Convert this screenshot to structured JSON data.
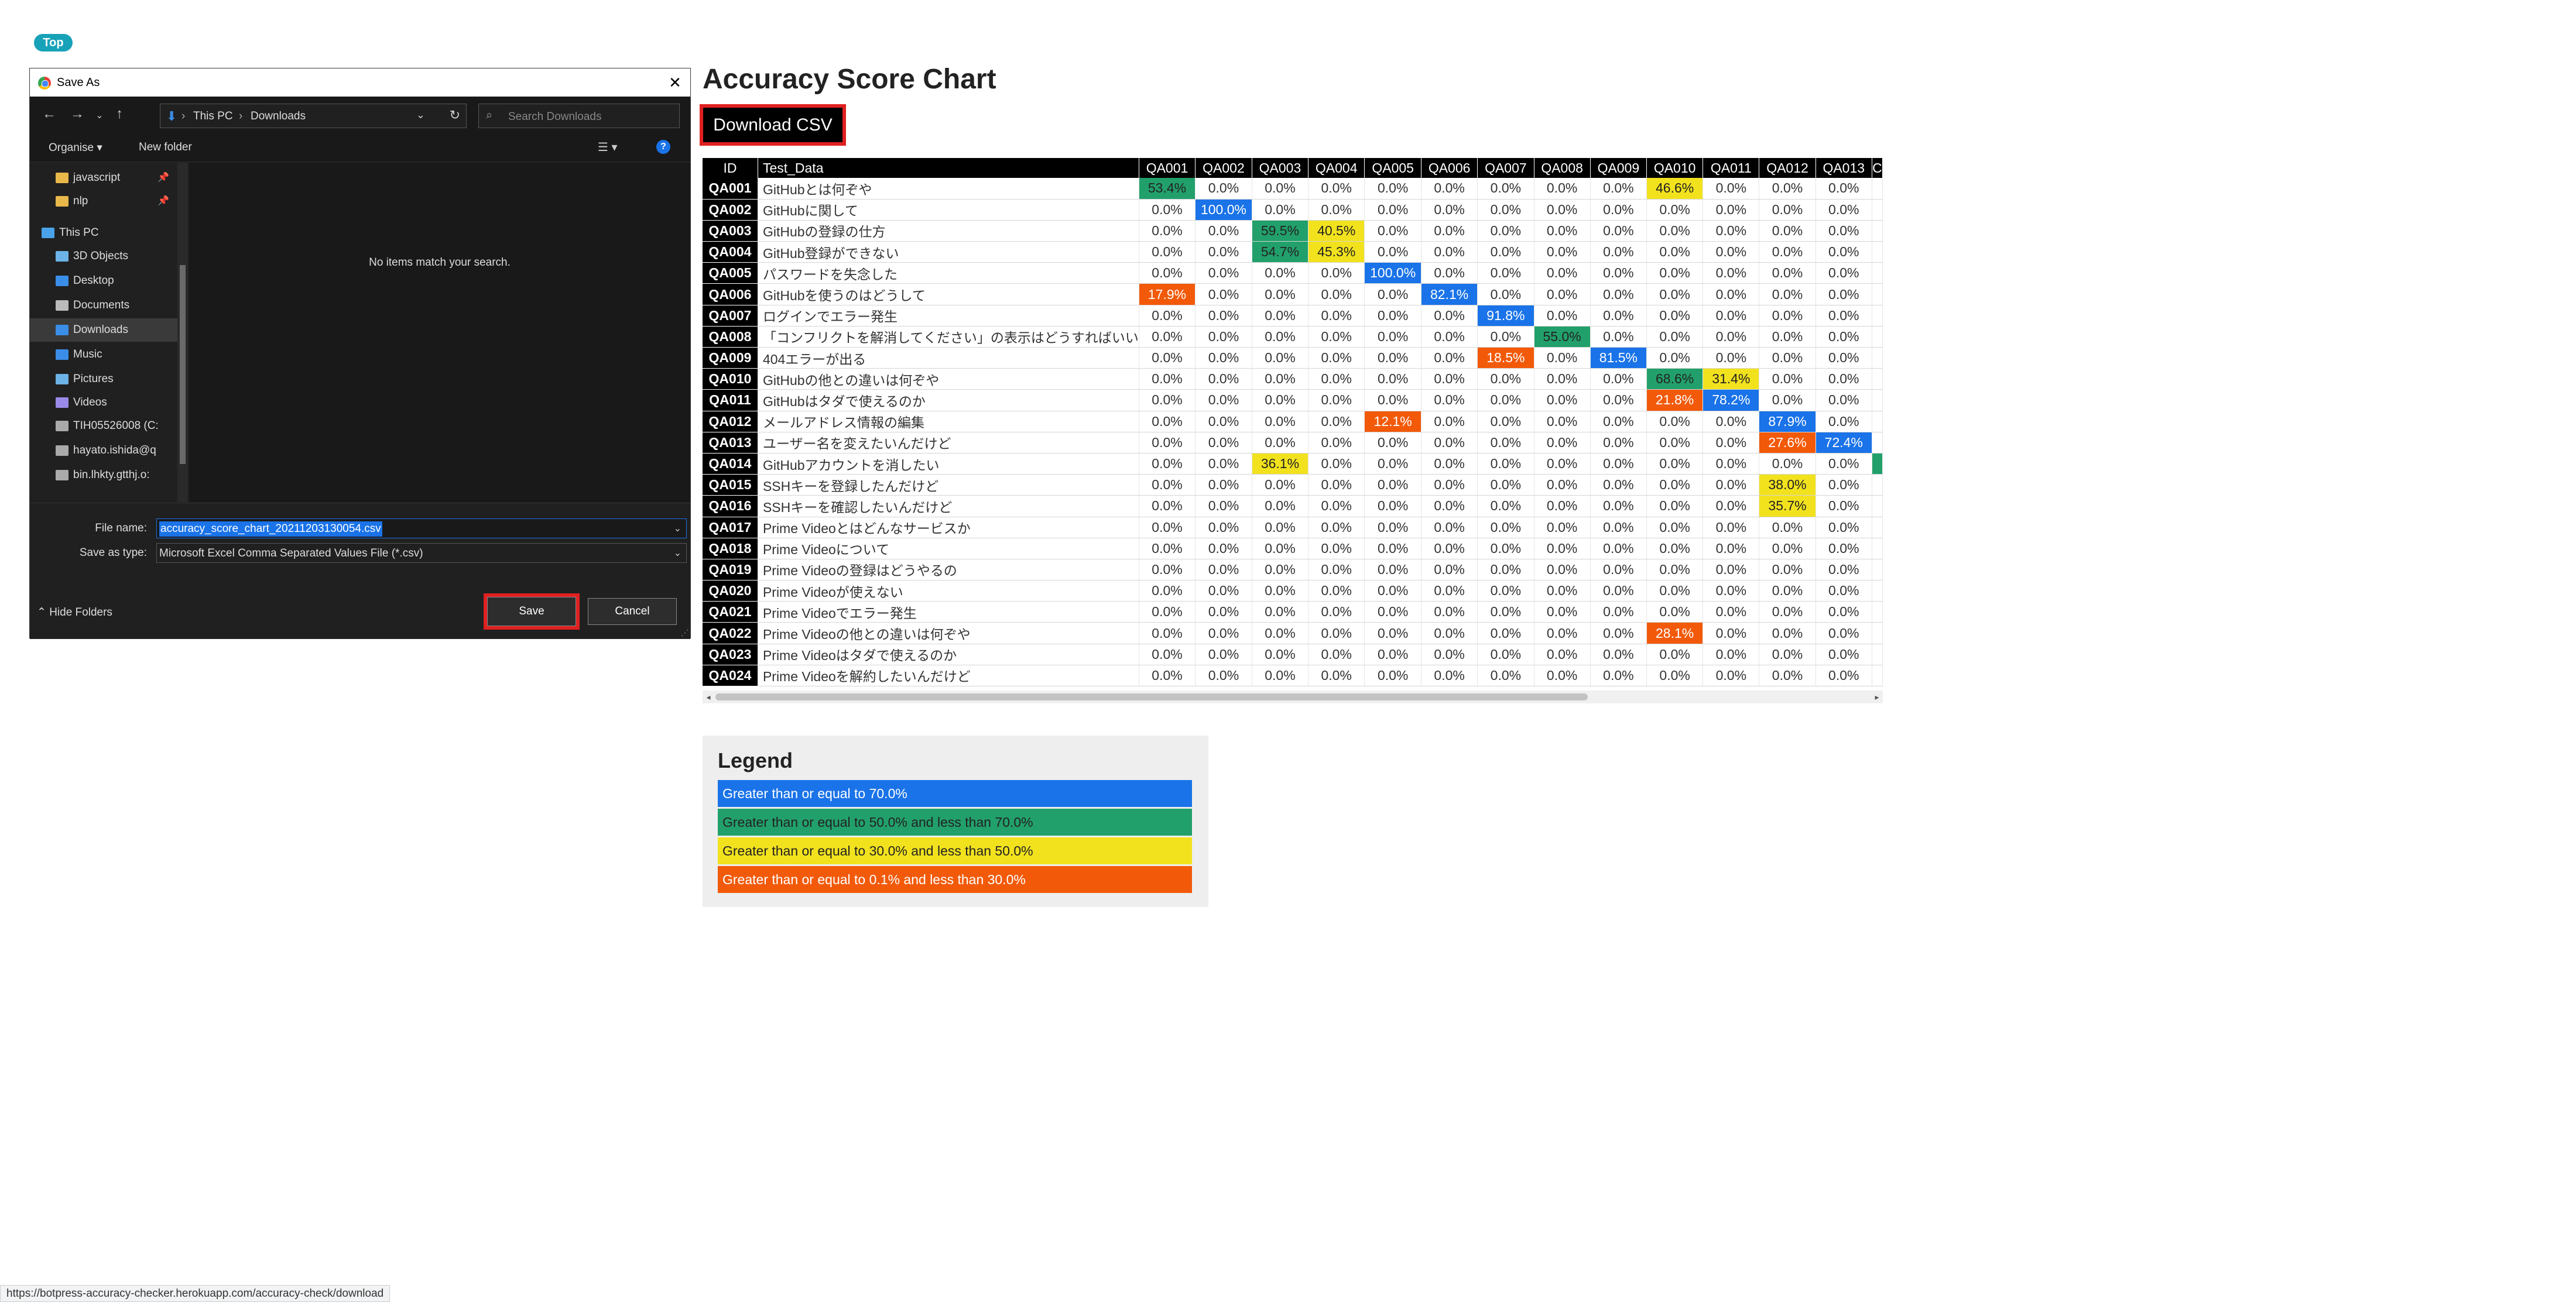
{
  "top_badge": "Top",
  "page": {
    "title": "Accuracy Score Chart",
    "download_label": "Download CSV"
  },
  "colors": {
    "blue": "#1a73e8",
    "green": "#22a06b",
    "yellow": "#f2e21e",
    "orange": "#f25a0a"
  },
  "table": {
    "id_header": "ID",
    "data_header": "Test_Data",
    "columns": [
      "QA001",
      "QA002",
      "QA003",
      "QA004",
      "QA005",
      "QA006",
      "QA007",
      "QA008",
      "QA009",
      "QA010",
      "QA011",
      "QA012",
      "QA013",
      "C"
    ],
    "rows": [
      {
        "id": "QA001",
        "text": "GitHubとは何ぞや",
        "vals": [
          "53.4%",
          "0.0%",
          "0.0%",
          "0.0%",
          "0.0%",
          "0.0%",
          "0.0%",
          "0.0%",
          "0.0%",
          "46.6%",
          "0.0%",
          "0.0%",
          "0.0%",
          ""
        ]
      },
      {
        "id": "QA002",
        "text": "GitHubに関して",
        "vals": [
          "0.0%",
          "100.0%",
          "0.0%",
          "0.0%",
          "0.0%",
          "0.0%",
          "0.0%",
          "0.0%",
          "0.0%",
          "0.0%",
          "0.0%",
          "0.0%",
          "0.0%",
          ""
        ]
      },
      {
        "id": "QA003",
        "text": "GitHubの登録の仕方",
        "vals": [
          "0.0%",
          "0.0%",
          "59.5%",
          "40.5%",
          "0.0%",
          "0.0%",
          "0.0%",
          "0.0%",
          "0.0%",
          "0.0%",
          "0.0%",
          "0.0%",
          "0.0%",
          ""
        ]
      },
      {
        "id": "QA004",
        "text": "GitHub登録ができない",
        "vals": [
          "0.0%",
          "0.0%",
          "54.7%",
          "45.3%",
          "0.0%",
          "0.0%",
          "0.0%",
          "0.0%",
          "0.0%",
          "0.0%",
          "0.0%",
          "0.0%",
          "0.0%",
          ""
        ]
      },
      {
        "id": "QA005",
        "text": "パスワードを失念した",
        "vals": [
          "0.0%",
          "0.0%",
          "0.0%",
          "0.0%",
          "100.0%",
          "0.0%",
          "0.0%",
          "0.0%",
          "0.0%",
          "0.0%",
          "0.0%",
          "0.0%",
          "0.0%",
          ""
        ]
      },
      {
        "id": "QA006",
        "text": "GitHubを使うのはどうして",
        "vals": [
          "17.9%",
          "0.0%",
          "0.0%",
          "0.0%",
          "0.0%",
          "82.1%",
          "0.0%",
          "0.0%",
          "0.0%",
          "0.0%",
          "0.0%",
          "0.0%",
          "0.0%",
          ""
        ]
      },
      {
        "id": "QA007",
        "text": "ログインでエラー発生",
        "vals": [
          "0.0%",
          "0.0%",
          "0.0%",
          "0.0%",
          "0.0%",
          "0.0%",
          "91.8%",
          "0.0%",
          "0.0%",
          "0.0%",
          "0.0%",
          "0.0%",
          "0.0%",
          ""
        ]
      },
      {
        "id": "QA008",
        "text": "「コンフリクトを解消してください」の表示はどうすればいい",
        "vals": [
          "0.0%",
          "0.0%",
          "0.0%",
          "0.0%",
          "0.0%",
          "0.0%",
          "0.0%",
          "55.0%",
          "0.0%",
          "0.0%",
          "0.0%",
          "0.0%",
          "0.0%",
          ""
        ]
      },
      {
        "id": "QA009",
        "text": "404エラーが出る",
        "vals": [
          "0.0%",
          "0.0%",
          "0.0%",
          "0.0%",
          "0.0%",
          "0.0%",
          "18.5%",
          "0.0%",
          "81.5%",
          "0.0%",
          "0.0%",
          "0.0%",
          "0.0%",
          ""
        ]
      },
      {
        "id": "QA010",
        "text": "GitHubの他との違いは何ぞや",
        "vals": [
          "0.0%",
          "0.0%",
          "0.0%",
          "0.0%",
          "0.0%",
          "0.0%",
          "0.0%",
          "0.0%",
          "0.0%",
          "68.6%",
          "31.4%",
          "0.0%",
          "0.0%",
          ""
        ]
      },
      {
        "id": "QA011",
        "text": "GitHubはタダで使えるのか",
        "vals": [
          "0.0%",
          "0.0%",
          "0.0%",
          "0.0%",
          "0.0%",
          "0.0%",
          "0.0%",
          "0.0%",
          "0.0%",
          "21.8%",
          "78.2%",
          "0.0%",
          "0.0%",
          ""
        ]
      },
      {
        "id": "QA012",
        "text": "メールアドレス情報の編集",
        "vals": [
          "0.0%",
          "0.0%",
          "0.0%",
          "0.0%",
          "12.1%",
          "0.0%",
          "0.0%",
          "0.0%",
          "0.0%",
          "0.0%",
          "0.0%",
          "87.9%",
          "0.0%",
          ""
        ]
      },
      {
        "id": "QA013",
        "text": "ユーザー名を変えたいんだけど",
        "vals": [
          "0.0%",
          "0.0%",
          "0.0%",
          "0.0%",
          "0.0%",
          "0.0%",
          "0.0%",
          "0.0%",
          "0.0%",
          "0.0%",
          "0.0%",
          "27.6%",
          "72.4%",
          ""
        ]
      },
      {
        "id": "QA014",
        "text": "GitHubアカウントを消したい",
        "vals": [
          "0.0%",
          "0.0%",
          "36.1%",
          "0.0%",
          "0.0%",
          "0.0%",
          "0.0%",
          "0.0%",
          "0.0%",
          "0.0%",
          "0.0%",
          "0.0%",
          "0.0%",
          ""
        ]
      },
      {
        "id": "QA015",
        "text": "SSHキーを登録したんだけど",
        "vals": [
          "0.0%",
          "0.0%",
          "0.0%",
          "0.0%",
          "0.0%",
          "0.0%",
          "0.0%",
          "0.0%",
          "0.0%",
          "0.0%",
          "0.0%",
          "38.0%",
          "0.0%",
          ""
        ]
      },
      {
        "id": "QA016",
        "text": "SSHキーを確認したいんだけど",
        "vals": [
          "0.0%",
          "0.0%",
          "0.0%",
          "0.0%",
          "0.0%",
          "0.0%",
          "0.0%",
          "0.0%",
          "0.0%",
          "0.0%",
          "0.0%",
          "35.7%",
          "0.0%",
          ""
        ]
      },
      {
        "id": "QA017",
        "text": "Prime Videoとはどんなサービスか",
        "vals": [
          "0.0%",
          "0.0%",
          "0.0%",
          "0.0%",
          "0.0%",
          "0.0%",
          "0.0%",
          "0.0%",
          "0.0%",
          "0.0%",
          "0.0%",
          "0.0%",
          "0.0%",
          ""
        ]
      },
      {
        "id": "QA018",
        "text": "Prime Videoについて",
        "vals": [
          "0.0%",
          "0.0%",
          "0.0%",
          "0.0%",
          "0.0%",
          "0.0%",
          "0.0%",
          "0.0%",
          "0.0%",
          "0.0%",
          "0.0%",
          "0.0%",
          "0.0%",
          ""
        ]
      },
      {
        "id": "QA019",
        "text": "Prime Videoの登録はどうやるの",
        "vals": [
          "0.0%",
          "0.0%",
          "0.0%",
          "0.0%",
          "0.0%",
          "0.0%",
          "0.0%",
          "0.0%",
          "0.0%",
          "0.0%",
          "0.0%",
          "0.0%",
          "0.0%",
          ""
        ]
      },
      {
        "id": "QA020",
        "text": "Prime Videoが使えない",
        "vals": [
          "0.0%",
          "0.0%",
          "0.0%",
          "0.0%",
          "0.0%",
          "0.0%",
          "0.0%",
          "0.0%",
          "0.0%",
          "0.0%",
          "0.0%",
          "0.0%",
          "0.0%",
          ""
        ]
      },
      {
        "id": "QA021",
        "text": "Prime Videoでエラー発生",
        "vals": [
          "0.0%",
          "0.0%",
          "0.0%",
          "0.0%",
          "0.0%",
          "0.0%",
          "0.0%",
          "0.0%",
          "0.0%",
          "0.0%",
          "0.0%",
          "0.0%",
          "0.0%",
          ""
        ]
      },
      {
        "id": "QA022",
        "text": "Prime Videoの他との違いは何ぞや",
        "vals": [
          "0.0%",
          "0.0%",
          "0.0%",
          "0.0%",
          "0.0%",
          "0.0%",
          "0.0%",
          "0.0%",
          "0.0%",
          "28.1%",
          "0.0%",
          "0.0%",
          "0.0%",
          ""
        ]
      },
      {
        "id": "QA023",
        "text": "Prime Videoはタダで使えるのか",
        "vals": [
          "0.0%",
          "0.0%",
          "0.0%",
          "0.0%",
          "0.0%",
          "0.0%",
          "0.0%",
          "0.0%",
          "0.0%",
          "0.0%",
          "0.0%",
          "0.0%",
          "0.0%",
          ""
        ]
      },
      {
        "id": "QA024",
        "text": "Prime Videoを解約したいんだけど",
        "vals": [
          "0.0%",
          "0.0%",
          "0.0%",
          "0.0%",
          "0.0%",
          "0.0%",
          "0.0%",
          "0.0%",
          "0.0%",
          "0.0%",
          "0.0%",
          "0.0%",
          "0.0%",
          ""
        ]
      }
    ]
  },
  "legend": {
    "title": "Legend",
    "items": [
      {
        "label": "Greater than or equal to 70.0%",
        "color": "#1a73e8",
        "text_color": "#ffffff"
      },
      {
        "label": "Greater than or equal to 50.0% and less than 70.0%",
        "color": "#22a06b",
        "text_color": "#222222"
      },
      {
        "label": "Greater than or equal to 30.0% and less than 50.0%",
        "color": "#f2e21e",
        "text_color": "#222222"
      },
      {
        "label": "Greater than or equal to 0.1% and less than 30.0%",
        "color": "#f25a0a",
        "text_color": "#ffffff"
      }
    ]
  },
  "dialog": {
    "title": "Save As",
    "path": [
      "This PC",
      "Downloads"
    ],
    "search_placeholder": "Search Downloads",
    "organise": "Organise ▾",
    "new_folder": "New folder",
    "empty_text": "No items match your search.",
    "nav_items": [
      {
        "label": "javascript",
        "icon": "folder-icon",
        "color": "#e8b84a",
        "pinned": true
      },
      {
        "label": "nlp",
        "icon": "folder-icon",
        "color": "#e8b84a",
        "pinned": true
      },
      {
        "label": "This PC",
        "icon": "computer-icon",
        "color": "#4aa3e8",
        "pinned": false
      },
      {
        "label": "3D Objects",
        "icon": "cube-icon",
        "color": "#6cb3e8",
        "pinned": false
      },
      {
        "label": "Desktop",
        "icon": "desktop-icon",
        "color": "#3b8ee8",
        "pinned": false
      },
      {
        "label": "Documents",
        "icon": "document-icon",
        "color": "#bbbbbb",
        "pinned": false
      },
      {
        "label": "Downloads",
        "icon": "download-icon",
        "color": "#3b8ee8",
        "pinned": false
      },
      {
        "label": "Music",
        "icon": "music-icon",
        "color": "#3b8ee8",
        "pinned": false
      },
      {
        "label": "Pictures",
        "icon": "pictures-icon",
        "color": "#6cb3e8",
        "pinned": false
      },
      {
        "label": "Videos",
        "icon": "video-icon",
        "color": "#9a8ae8",
        "pinned": false
      },
      {
        "label": "TIH05526008 (C:",
        "icon": "drive-icon",
        "color": "#aaaaaa",
        "pinned": false
      },
      {
        "label": "hayato.ishida@q",
        "icon": "network-drive-icon",
        "color": "#aaaaaa",
        "pinned": false
      },
      {
        "label": "bin.lhkty.gtthj.o:",
        "icon": "network-drive-icon",
        "color": "#aaaaaa",
        "pinned": false
      }
    ],
    "file_name_label": "File name:",
    "file_name_value": "accuracy_score_chart_20211203130054.csv",
    "save_type_label": "Save as type:",
    "save_type_value": "Microsoft Excel Comma Separated Values File (*.csv)",
    "hide_folders": "Hide Folders",
    "save_label": "Save",
    "cancel_label": "Cancel"
  },
  "status_url": "https://botpress-accuracy-checker.herokuapp.com/accuracy-check/download"
}
